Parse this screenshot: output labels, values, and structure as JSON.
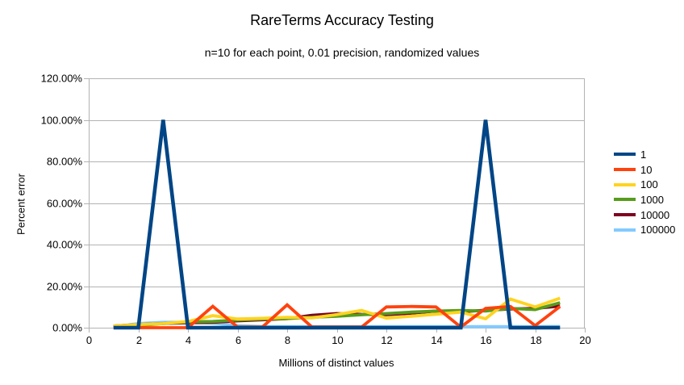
{
  "colors": {
    "background": "#ffffff",
    "gridline": "#b3b3b3",
    "axis": "#b3b3b3",
    "text": "#000000"
  },
  "chart_data": {
    "type": "line",
    "title": "RareTerms Accuracy Testing",
    "subtitle": "n=10 for each point, 0.01 precision, randomized values",
    "xlabel": "Millions of distinct values",
    "ylabel": "Percent error",
    "xlim": [
      0,
      20
    ],
    "ylim": [
      0,
      120
    ],
    "grid": "horizontal-only",
    "legend_position": "right",
    "xtick_values": [
      0,
      2,
      4,
      6,
      8,
      10,
      12,
      14,
      16,
      18,
      20
    ],
    "xtick_labels": [
      "0",
      "2",
      "4",
      "6",
      "8",
      "10",
      "12",
      "14",
      "16",
      "18",
      "20"
    ],
    "ytick_values": [
      0,
      20,
      40,
      60,
      80,
      100,
      120
    ],
    "ytick_labels": [
      "0.00%",
      "20.00%",
      "40.00%",
      "60.00%",
      "80.00%",
      "100.00%",
      "120.00%"
    ],
    "x": [
      1,
      2,
      3,
      4,
      5,
      6,
      7,
      8,
      9,
      10,
      11,
      12,
      13,
      14,
      15,
      16,
      17,
      18,
      19
    ],
    "series": [
      {
        "name": "1",
        "color": "#004586",
        "values": [
          0,
          0,
          100,
          0,
          0,
          0,
          0,
          0,
          0,
          0,
          0,
          0,
          0,
          0,
          0,
          100,
          0,
          0,
          0
        ]
      },
      {
        "name": "10",
        "color": "#FF420E",
        "values": [
          0,
          0,
          0,
          0,
          10.3,
          0.3,
          0.3,
          11,
          0.3,
          0.3,
          0.3,
          10,
          10.2,
          10,
          0.3,
          9.3,
          10.2,
          1,
          10.2
        ]
      },
      {
        "name": "100",
        "color": "#FFD320",
        "values": [
          0.8,
          1.5,
          2,
          3,
          5.8,
          4.2,
          4.5,
          5,
          4.7,
          6.3,
          8.3,
          4.6,
          5.5,
          6.5,
          7.5,
          4.3,
          13.8,
          10,
          14.2
        ]
      },
      {
        "name": "1000",
        "color": "#579D1C",
        "values": [
          0.3,
          1,
          2,
          2.8,
          3,
          3.7,
          4.1,
          4.4,
          5,
          5.5,
          6.2,
          6.8,
          7.5,
          8,
          8.3,
          8,
          9.3,
          8.7,
          12
        ]
      },
      {
        "name": "10000",
        "color": "#7E0021",
        "values": [
          0.8,
          1.5,
          2,
          2.4,
          2.6,
          3.3,
          3.8,
          4.4,
          6,
          6.8,
          6.4,
          6.3,
          7,
          8,
          7.7,
          8.4,
          9,
          9.3,
          10.4
        ]
      },
      {
        "name": "100000",
        "color": "#83CAFF",
        "values": [
          0.4,
          2,
          2.6,
          2.6,
          2.2,
          1,
          0.6,
          0.5,
          0.5,
          0.5,
          0.5,
          0.5,
          0.5,
          0.5,
          0.5,
          0.5,
          0.5,
          0.5,
          0.6
        ]
      }
    ]
  }
}
